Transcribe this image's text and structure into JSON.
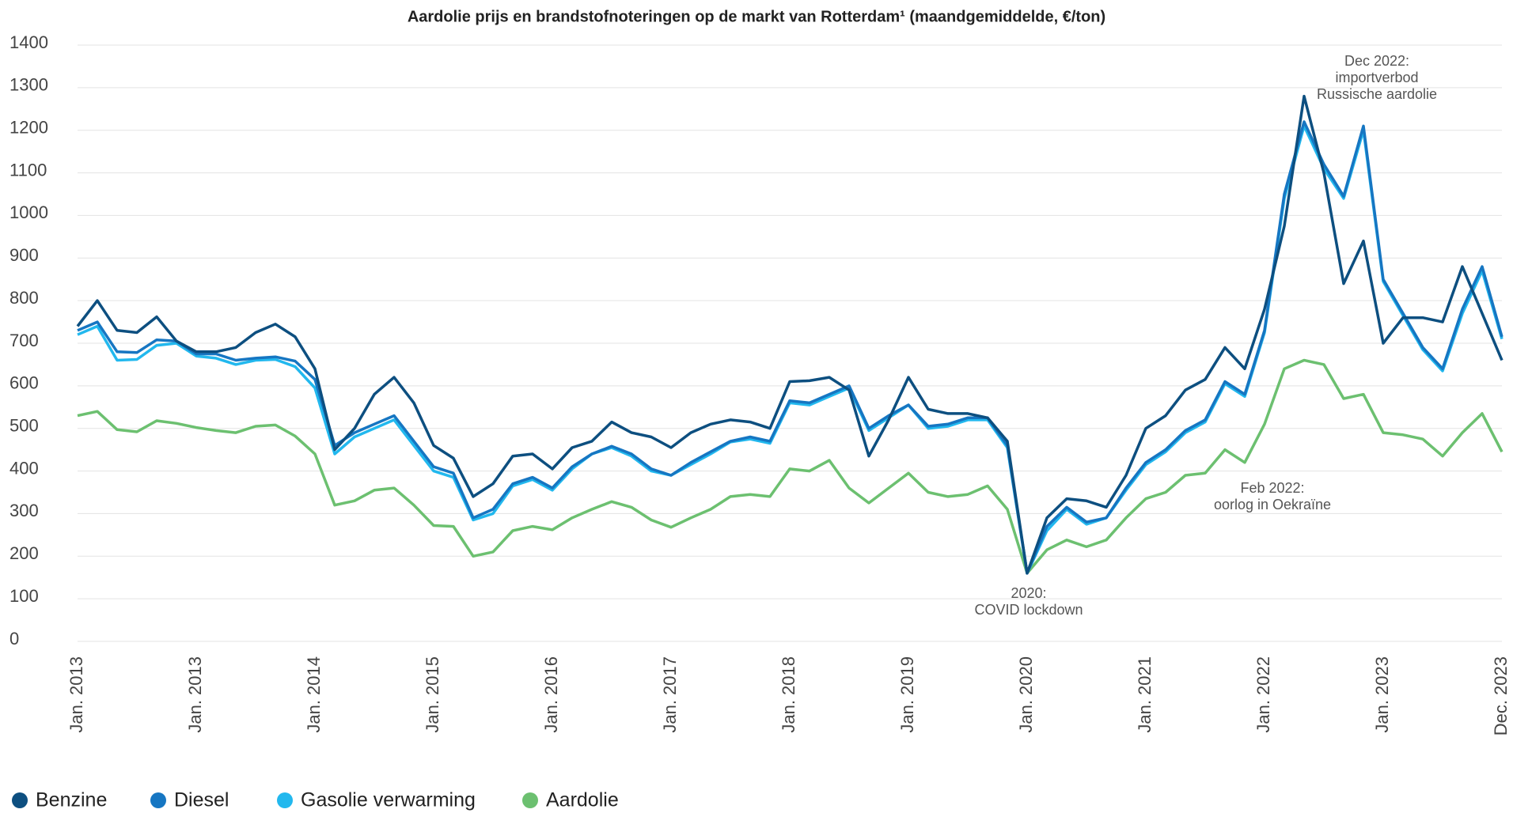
{
  "chart_data": {
    "type": "line",
    "title": "Aardolie prijs en brandstofnoteringen op de markt van Rotterdam¹ (maandgemiddelde, €/ton)",
    "categories": [
      "Jan. 2013",
      null,
      null,
      null,
      null,
      null,
      "Jan. 2013",
      null,
      null,
      null,
      null,
      null,
      "Jan. 2014",
      null,
      null,
      null,
      null,
      null,
      "Jan. 2015",
      null,
      null,
      null,
      null,
      null,
      "Jan. 2016",
      null,
      null,
      null,
      null,
      null,
      "Jan. 2017",
      null,
      null,
      null,
      null,
      null,
      "Jan. 2018",
      null,
      null,
      null,
      null,
      null,
      "Jan. 2019",
      null,
      null,
      null,
      null,
      null,
      "Jan. 2020",
      null,
      null,
      null,
      null,
      null,
      "Jan. 2021",
      null,
      null,
      null,
      null,
      null,
      "Jan. 2022",
      null,
      null,
      null,
      null,
      null,
      "Jan. 2023",
      null,
      null,
      null,
      null,
      null,
      "Dec. 2023"
    ],
    "ylim": [
      0,
      1400
    ],
    "yticks": [
      0,
      100,
      200,
      300,
      400,
      500,
      600,
      700,
      800,
      900,
      1000,
      1100,
      1200,
      1300,
      1400
    ],
    "grid": true,
    "series": [
      {
        "name": "Benzine",
        "color": "#0d4f80",
        "values": [
          740,
          800,
          730,
          725,
          762,
          705,
          680,
          680,
          690,
          725,
          745,
          715,
          640,
          450,
          500,
          580,
          620,
          560,
          460,
          430,
          340,
          370,
          435,
          440,
          405,
          455,
          470,
          515,
          490,
          480,
          455,
          490,
          510,
          520,
          515,
          500,
          610,
          612,
          620,
          590,
          435,
          520,
          620,
          545,
          535,
          535,
          525,
          470,
          160,
          290,
          335,
          330,
          315,
          390,
          500,
          530,
          590,
          615,
          690,
          640,
          780,
          975,
          1280,
          1100,
          840,
          940,
          700,
          760,
          760,
          750,
          880,
          770,
          660
        ]
      },
      {
        "name": "Diesel",
        "color": "#1676c2",
        "values": [
          730,
          750,
          680,
          678,
          708,
          705,
          675,
          675,
          660,
          665,
          668,
          658,
          615,
          460,
          490,
          510,
          530,
          470,
          410,
          395,
          290,
          310,
          370,
          385,
          360,
          410,
          440,
          458,
          440,
          405,
          390,
          420,
          445,
          470,
          480,
          470,
          565,
          560,
          580,
          600,
          500,
          530,
          555,
          505,
          510,
          525,
          525,
          460,
          160,
          270,
          315,
          280,
          290,
          360,
          420,
          450,
          495,
          520,
          610,
          580,
          730,
          1050,
          1220,
          1120,
          1045,
          1210,
          850,
          770,
          690,
          640,
          780,
          880,
          715
        ]
      },
      {
        "name": "Gasolie verwarming",
        "color": "#22b8ee",
        "values": [
          720,
          740,
          660,
          662,
          695,
          700,
          670,
          665,
          650,
          660,
          662,
          645,
          595,
          440,
          480,
          500,
          520,
          460,
          400,
          385,
          285,
          300,
          365,
          380,
          355,
          405,
          440,
          455,
          435,
          400,
          390,
          415,
          440,
          468,
          475,
          465,
          560,
          555,
          575,
          595,
          495,
          525,
          555,
          500,
          505,
          520,
          520,
          455,
          160,
          260,
          310,
          275,
          290,
          355,
          415,
          445,
          490,
          515,
          605,
          575,
          725,
          1040,
          1210,
          1110,
          1040,
          1200,
          845,
          765,
          685,
          635,
          770,
          870,
          710
        ]
      },
      {
        "name": "Aardolie",
        "color": "#6cc070",
        "values": [
          530,
          540,
          497,
          492,
          518,
          512,
          502,
          495,
          490,
          505,
          508,
          482,
          440,
          320,
          330,
          355,
          360,
          320,
          272,
          270,
          200,
          210,
          260,
          270,
          262,
          290,
          310,
          328,
          315,
          285,
          268,
          290,
          310,
          340,
          345,
          340,
          405,
          400,
          425,
          360,
          325,
          360,
          395,
          350,
          340,
          345,
          365,
          310,
          160,
          215,
          238,
          222,
          238,
          290,
          335,
          350,
          390,
          395,
          450,
          420,
          510,
          640,
          660,
          650,
          570,
          580,
          490,
          485,
          475,
          435,
          490,
          535,
          445
        ]
      }
    ],
    "annotations": [
      {
        "lines": [
          "Dec 2022:",
          "importverbod",
          "Russische aardolie"
        ]
      },
      {
        "lines": [
          "Feb 2022:",
          "oorlog in Oekraïne"
        ]
      },
      {
        "lines": [
          "2020:",
          "COVID lockdown"
        ]
      }
    ]
  }
}
